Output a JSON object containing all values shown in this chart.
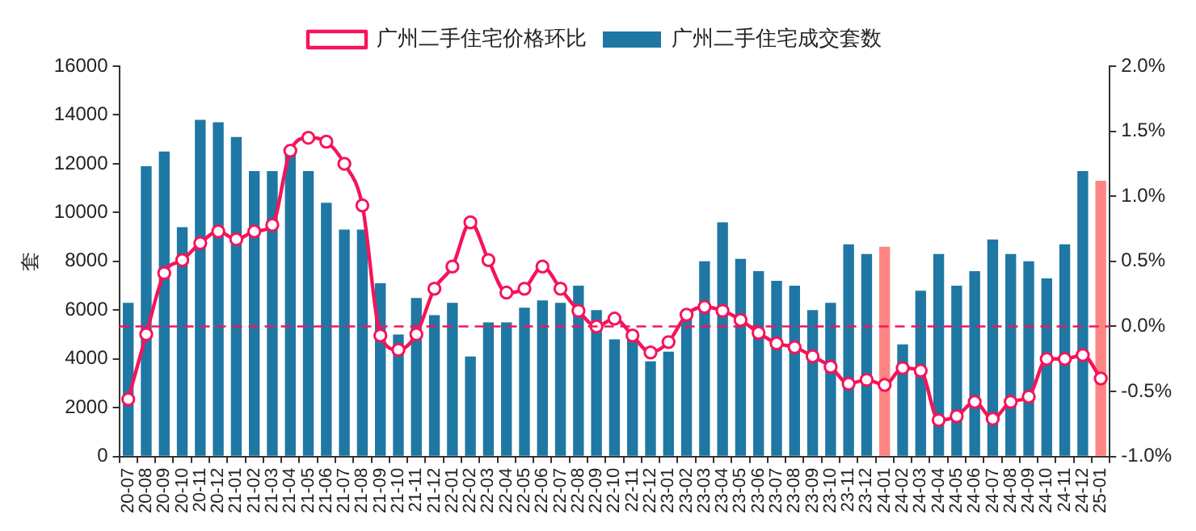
{
  "chart_data": {
    "type": "bar",
    "ylabel": "套",
    "categories": [
      "20-07",
      "20-08",
      "20-09",
      "20-10",
      "20-11",
      "20-12",
      "21-01",
      "21-02",
      "21-03",
      "21-04",
      "21-05",
      "21-06",
      "21-07",
      "21-08",
      "21-09",
      "21-10",
      "21-11",
      "21-12",
      "22-01",
      "22-02",
      "22-03",
      "22-04",
      "22-05",
      "22-06",
      "22-07",
      "22-08",
      "22-09",
      "22-10",
      "22-11",
      "22-12",
      "23-01",
      "23-02",
      "23-03",
      "23-04",
      "23-05",
      "23-06",
      "23-07",
      "23-08",
      "23-09",
      "23-10",
      "23-11",
      "23-12",
      "24-01",
      "24-02",
      "24-03",
      "24-04",
      "24-05",
      "24-06",
      "24-07",
      "24-08",
      "24-09",
      "24-10",
      "24-11",
      "24-12",
      "25-01"
    ],
    "series": [
      {
        "name": "广州二手住宅成交套数",
        "color": "#1f77a4",
        "colors": [
          "#1f77a4",
          "#1f77a4",
          "#1f77a4",
          "#1f77a4",
          "#1f77a4",
          "#1f77a4",
          "#1f77a4",
          "#1f77a4",
          "#1f77a4",
          "#1f77a4",
          "#1f77a4",
          "#1f77a4",
          "#1f77a4",
          "#1f77a4",
          "#1f77a4",
          "#1f77a4",
          "#1f77a4",
          "#1f77a4",
          "#1f77a4",
          "#1f77a4",
          "#1f77a4",
          "#1f77a4",
          "#1f77a4",
          "#1f77a4",
          "#1f77a4",
          "#1f77a4",
          "#1f77a4",
          "#1f77a4",
          "#1f77a4",
          "#1f77a4",
          "#1f77a4",
          "#1f77a4",
          "#1f77a4",
          "#1f77a4",
          "#1f77a4",
          "#1f77a4",
          "#1f77a4",
          "#1f77a4",
          "#1f77a4",
          "#1f77a4",
          "#1f77a4",
          "#1f77a4",
          "#ff8585",
          "#1f77a4",
          "#1f77a4",
          "#1f77a4",
          "#1f77a4",
          "#1f77a4",
          "#1f77a4",
          "#1f77a4",
          "#1f77a4",
          "#1f77a4",
          "#1f77a4",
          "#1f77a4",
          "#ff8585"
        ],
        "values": [
          6300,
          11900,
          12500,
          9400,
          13800,
          13700,
          13100,
          11700,
          11700,
          12400,
          11700,
          10400,
          9300,
          9300,
          7100,
          5000,
          6500,
          5800,
          6300,
          4100,
          5500,
          5500,
          6100,
          6400,
          6300,
          7000,
          6000,
          4800,
          4900,
          3900,
          4300,
          5700,
          8000,
          9600,
          8100,
          7600,
          7200,
          7000,
          6000,
          6300,
          8700,
          8300,
          8600,
          4600,
          6800,
          8300,
          7000,
          7600,
          8900,
          8300,
          8000,
          7300,
          8700,
          11700,
          11300
        ]
      },
      {
        "name": "广州二手住宅价格环比",
        "type": "line",
        "axis": "y2",
        "color": "#f5145a",
        "marker": "circle",
        "values": [
          -0.56,
          -0.06,
          0.41,
          0.51,
          0.64,
          0.73,
          0.67,
          0.73,
          0.78,
          1.35,
          1.45,
          1.42,
          1.25,
          0.93,
          -0.07,
          -0.18,
          -0.06,
          0.29,
          0.46,
          0.8,
          0.51,
          0.26,
          0.29,
          0.46,
          0.29,
          0.12,
          0.0,
          0.06,
          -0.07,
          -0.2,
          -0.12,
          0.09,
          0.15,
          0.12,
          0.05,
          -0.05,
          -0.13,
          -0.16,
          -0.23,
          -0.31,
          -0.44,
          -0.41,
          -0.45,
          -0.32,
          -0.34,
          -0.72,
          -0.69,
          -0.58,
          -0.71,
          -0.58,
          -0.54,
          -0.25,
          -0.25,
          -0.22,
          -0.4
        ]
      }
    ],
    "ylim": [
      0,
      16000
    ],
    "yticks": [
      0,
      2000,
      4000,
      6000,
      8000,
      10000,
      12000,
      14000,
      16000
    ],
    "y2lim": [
      -1.0,
      2.0
    ],
    "y2ticks": [
      {
        "value": -1.0,
        "label": "-1.0%"
      },
      {
        "value": -0.5,
        "label": "-0.5%"
      },
      {
        "value": 0,
        "label": "0.0%"
      },
      {
        "value": 0.5,
        "label": "0.5%"
      },
      {
        "value": 1.0,
        "label": "1.0%"
      },
      {
        "value": 1.5,
        "label": "1.5%"
      },
      {
        "value": 2.0,
        "label": "2.0%"
      }
    ],
    "ref_lines": [
      {
        "axis": "y2",
        "value": 0,
        "color": "#f5145a",
        "line_style": "dashed"
      }
    ],
    "grid": false,
    "legend": "top"
  }
}
